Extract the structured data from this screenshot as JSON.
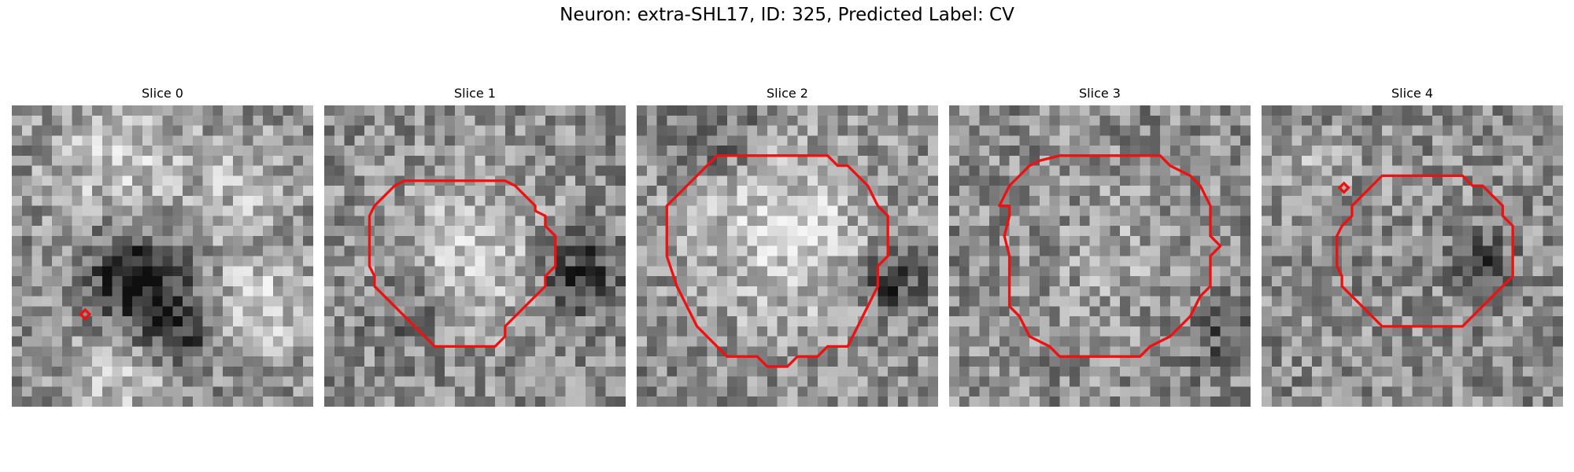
{
  "figure": {
    "title": "Neuron: extra-SHL17, ID: 325, Predicted Label: CV"
  },
  "panels": [
    {
      "title": "Slice 0",
      "seed": 11,
      "outline": "marker"
    },
    {
      "title": "Slice 1",
      "seed": 23,
      "outline": "contour"
    },
    {
      "title": "Slice 2",
      "seed": 37,
      "outline": "contour"
    },
    {
      "title": "Slice 3",
      "seed": 41,
      "outline": "contour"
    },
    {
      "title": "Slice 4",
      "seed": 53,
      "outline": "contour"
    }
  ],
  "colors": {
    "contour": "#ee1111",
    "pixel_min": "#151515",
    "pixel_max": "#f2f2f2"
  },
  "image_grid": {
    "rows": 30,
    "cols": 30,
    "colormap": "gray"
  }
}
